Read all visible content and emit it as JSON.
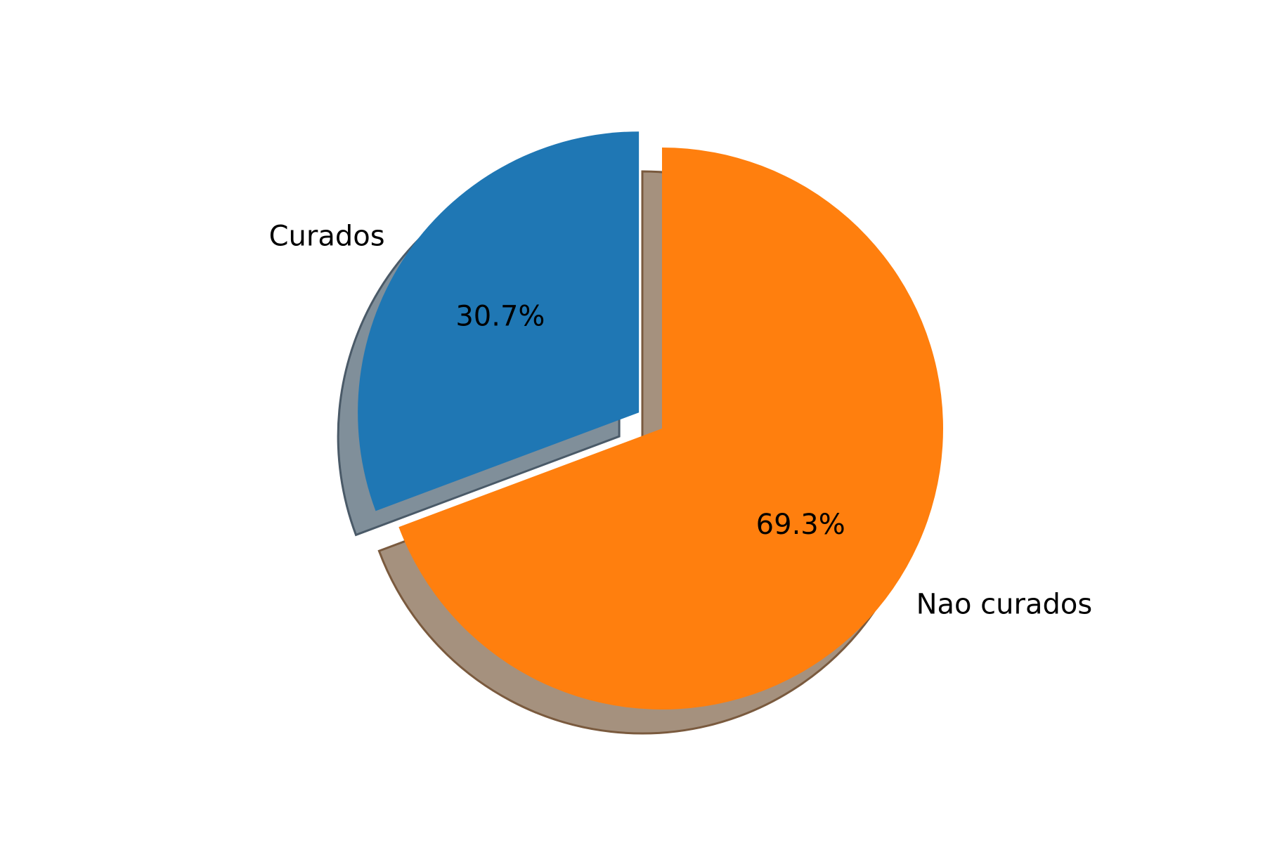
{
  "chart_data": {
    "type": "pie",
    "title": "",
    "start_angle_deg": 90,
    "counterclock": true,
    "shadow": true,
    "slices": [
      {
        "label": "Curados",
        "value": 30.7,
        "pct_label": "30.7%",
        "color": "#1f77b4",
        "shadow_color": "#808f9a",
        "shadow_stroke": "#4a5a68",
        "explode": 0.1
      },
      {
        "label": "Nao curados",
        "value": 69.3,
        "pct_label": "69.3%",
        "color": "#ff7f0e",
        "shadow_color": "#a5917e",
        "shadow_stroke": "#7a5a3e",
        "explode": 0.0
      }
    ]
  }
}
